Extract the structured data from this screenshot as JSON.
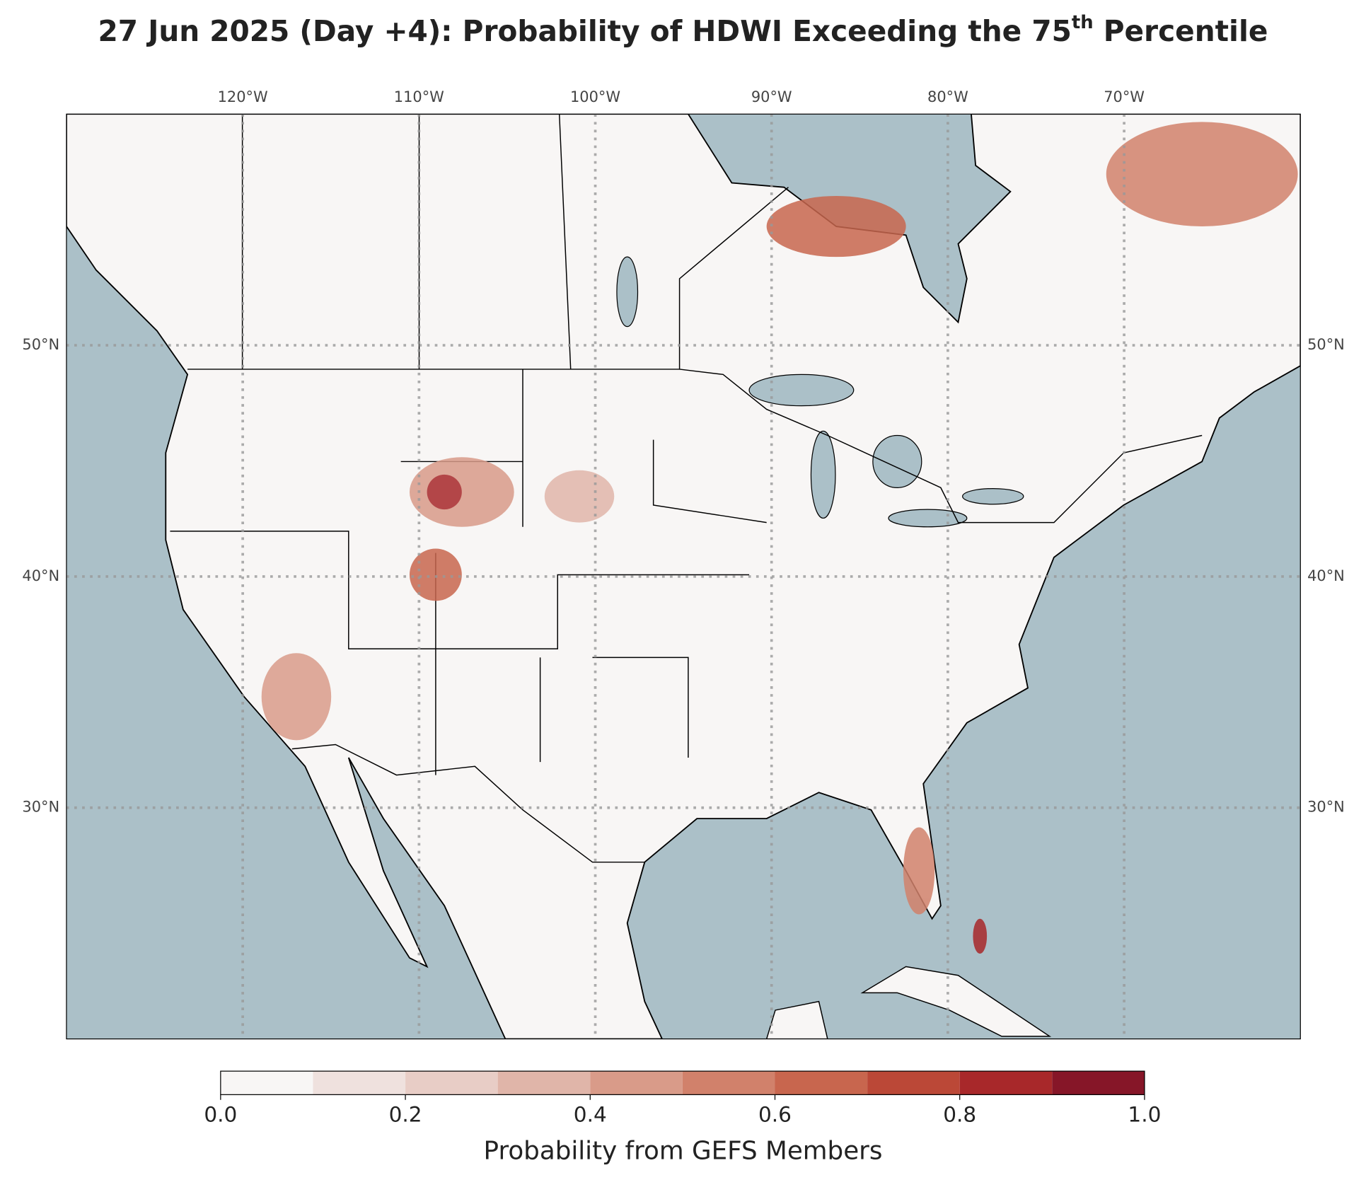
{
  "map": {
    "title": [
      "27 Jun 2025 (Day +4): Probability of HDWI Exceeding the 75",
      "th",
      " Percentile"
    ],
    "lonlim": [
      -130,
      -60
    ],
    "latlim": [
      20,
      60
    ],
    "lon_ticks": [
      {
        "value": -120,
        "label": "120°W"
      },
      {
        "value": -110,
        "label": "110°W"
      },
      {
        "value": -100,
        "label": "100°W"
      },
      {
        "value": -90,
        "label": "90°W"
      },
      {
        "value": -80,
        "label": "80°W"
      },
      {
        "value": -70,
        "label": "70°W"
      }
    ],
    "lat_ticks": [
      {
        "value": 50,
        "label": "50°N"
      },
      {
        "value": 40,
        "label": "40°N"
      },
      {
        "value": 30,
        "label": "30°N"
      }
    ],
    "colorbar": {
      "label": "Probability from GEFS Members",
      "levels": [
        0,
        0.1,
        0.2,
        0.3,
        0.4,
        0.5,
        0.6,
        0.7,
        0.8,
        0.9,
        1.0
      ],
      "colors": [
        "#f8f6f5",
        "#efe1de",
        "#e8cdc6",
        "#e0b5a9",
        "#d99b89",
        "#d1816b",
        "#c8664e",
        "#bb4837",
        "#a8282a",
        "#861628"
      ],
      "ticks": [
        {
          "value": 0,
          "label": "0.0"
        },
        {
          "value": 0.2,
          "label": "0.2"
        },
        {
          "value": 0.4,
          "label": "0.4"
        },
        {
          "value": 0.6,
          "label": "0.6"
        },
        {
          "value": 0.8,
          "label": "0.8"
        },
        {
          "value": 1.0,
          "label": "1.0"
        }
      ]
    }
  }
}
